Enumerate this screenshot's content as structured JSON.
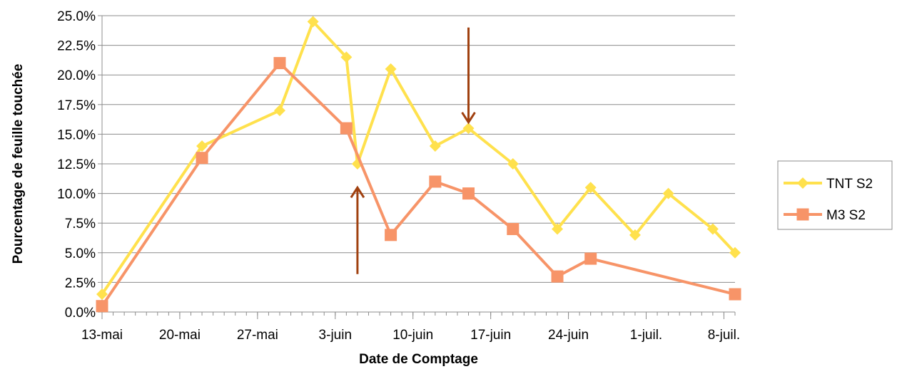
{
  "chart_data": {
    "type": "line",
    "title": "",
    "xlabel": "Date de Comptage",
    "ylabel": "Pourcentage de feuille touchée",
    "x_tick_labels": [
      "13-mai",
      "20-mai",
      "27-mai",
      "3-juin",
      "10-juin",
      "17-juin",
      "24-juin",
      "1-juil.",
      "8-juil."
    ],
    "y_tick_labels": [
      "0.0%",
      "2.5%",
      "5.0%",
      "7.5%",
      "10.0%",
      "12.5%",
      "15.0%",
      "17.5%",
      "20.0%",
      "22.5%",
      "25.0%"
    ],
    "ylim": [
      0,
      25
    ],
    "xlim": [
      "2013-05-13",
      "2013-07-09"
    ],
    "grid": "horizontal",
    "legend_position": "right",
    "series": [
      {
        "name": "TNT S2",
        "color": "#FFE14D",
        "marker": "diamond",
        "points": [
          {
            "x": "2013-05-13",
            "y": 1.5
          },
          {
            "x": "2013-05-22",
            "y": 14.0
          },
          {
            "x": "2013-05-29",
            "y": 17.0
          },
          {
            "x": "2013-06-01",
            "y": 24.5
          },
          {
            "x": "2013-06-04",
            "y": 21.5
          },
          {
            "x": "2013-06-05",
            "y": 12.5
          },
          {
            "x": "2013-06-08",
            "y": 20.5
          },
          {
            "x": "2013-06-12",
            "y": 14.0
          },
          {
            "x": "2013-06-15",
            "y": 15.5
          },
          {
            "x": "2013-06-19",
            "y": 12.5
          },
          {
            "x": "2013-06-23",
            "y": 7.0
          },
          {
            "x": "2013-06-26",
            "y": 10.5
          },
          {
            "x": "2013-06-30",
            "y": 6.5
          },
          {
            "x": "2013-07-03",
            "y": 10.0
          },
          {
            "x": "2013-07-07",
            "y": 7.0
          },
          {
            "x": "2013-07-09",
            "y": 5.0
          }
        ]
      },
      {
        "name": "M3 S2",
        "color": "#F79468",
        "marker": "square",
        "points": [
          {
            "x": "2013-05-13",
            "y": 0.5
          },
          {
            "x": "2013-05-22",
            "y": 13.0
          },
          {
            "x": "2013-05-29",
            "y": 21.0
          },
          {
            "x": "2013-06-04",
            "y": 15.5
          },
          {
            "x": "2013-06-08",
            "y": 6.5
          },
          {
            "x": "2013-06-12",
            "y": 11.0
          },
          {
            "x": "2013-06-15",
            "y": 10.0
          },
          {
            "x": "2013-06-19",
            "y": 7.0
          },
          {
            "x": "2013-06-23",
            "y": 3.0
          },
          {
            "x": "2013-06-26",
            "y": 4.5
          },
          {
            "x": "2013-07-09",
            "y": 1.5
          }
        ]
      }
    ],
    "annotations": [
      {
        "type": "arrow",
        "direction": "up",
        "x": "2013-06-05",
        "y_from": 3.2,
        "y_to": 10.5,
        "color": "#A0400F"
      },
      {
        "type": "arrow",
        "direction": "down",
        "x": "2013-06-15",
        "y_from": 24.0,
        "y_to": 16.0,
        "color": "#A0400F"
      }
    ]
  }
}
